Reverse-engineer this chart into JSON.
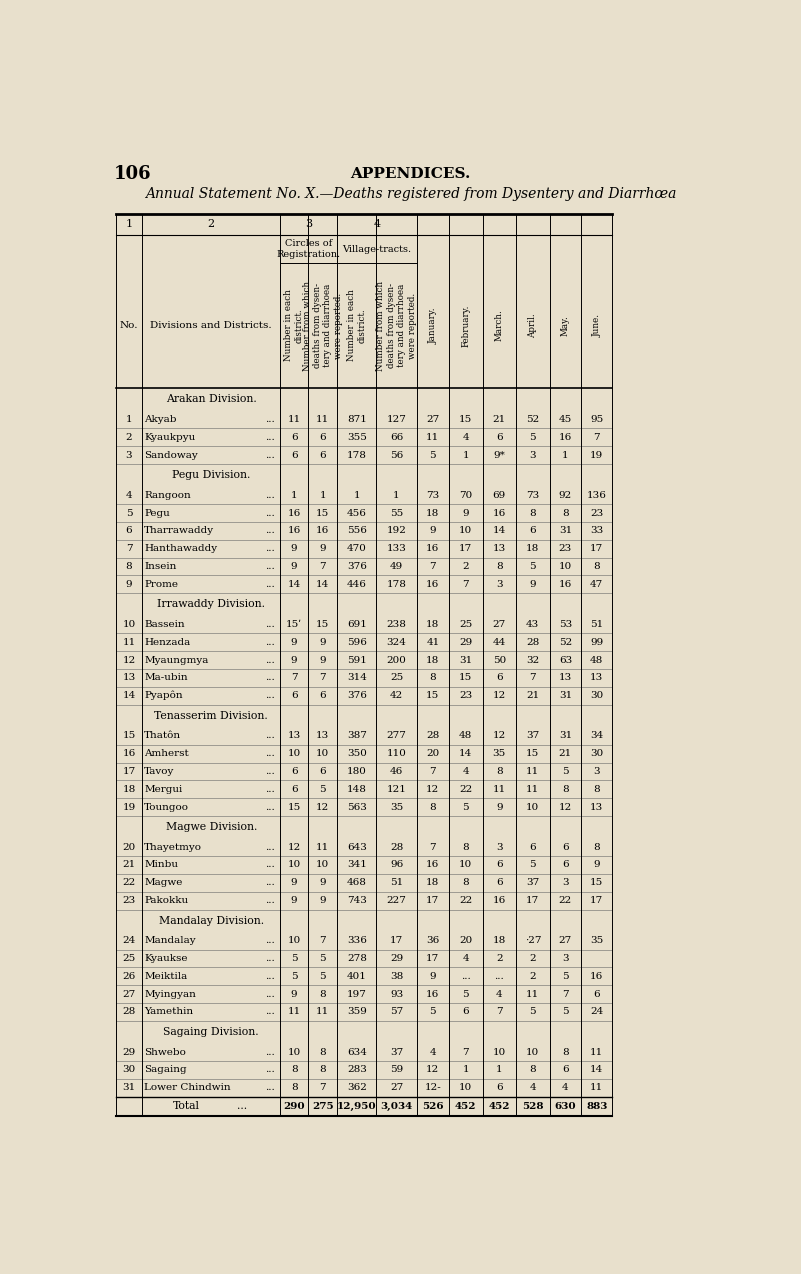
{
  "page_number": "106",
  "page_header": "APPENDICES.",
  "title": "Annual Statement No. X.—Deaths registered from Dysentery and Diarrhœa",
  "bg_color": "#e8e0cc",
  "divisions": [
    {
      "name": "Arakan Division.",
      "rows": [
        {
          "no": "1",
          "district": "Akyab",
          "c1": "11",
          "c2": "11",
          "c3": "871",
          "c4": "127",
          "jan": "27",
          "feb": "15",
          "mar": "21",
          "apr": "52",
          "may": "45",
          "jun": "95"
        },
        {
          "no": "2",
          "district": "Kyaukpyu",
          "c1": "6",
          "c2": "6",
          "c3": "355",
          "c4": "66",
          "jan": "11",
          "feb": "4",
          "mar": "6",
          "apr": "5",
          "may": "16",
          "jun": "7"
        },
        {
          "no": "3",
          "district": "Sandoway",
          "c1": "6",
          "c2": "6",
          "c3": "178",
          "c4": "56",
          "jan": "5",
          "feb": "1",
          "mar": "9*",
          "apr": "3",
          "may": "1",
          "jun": "19"
        }
      ]
    },
    {
      "name": "Pegu Division.",
      "rows": [
        {
          "no": "4",
          "district": "Rangoon",
          "c1": "1",
          "c2": "1",
          "c3": "1",
          "c4": "1",
          "jan": "73",
          "feb": "70",
          "mar": "69",
          "apr": "73",
          "may": "92",
          "jun": "136"
        },
        {
          "no": "5",
          "district": "Pegu",
          "c1": "16",
          "c2": "15",
          "c3": "456",
          "c4": "55",
          "jan": "18",
          "feb": "9",
          "mar": "16",
          "apr": "8",
          "may": "8",
          "jun": "23"
        },
        {
          "no": "6",
          "district": "Tharrawaddy",
          "c1": "16",
          "c2": "16",
          "c3": "556",
          "c4": "192",
          "jan": "9",
          "feb": "10",
          "mar": "14",
          "apr": "6",
          "may": "31",
          "jun": "33"
        },
        {
          "no": "7",
          "district": "Hanthawaddy",
          "c1": "9",
          "c2": "9",
          "c3": "470",
          "c4": "133",
          "jan": "16",
          "feb": "17",
          "mar": "13",
          "apr": "18",
          "may": "23",
          "jun": "17"
        },
        {
          "no": "8",
          "district": "Insein",
          "c1": "9",
          "c2": "7",
          "c3": "376",
          "c4": "49",
          "jan": "7",
          "feb": "2",
          "mar": "8",
          "apr": "5",
          "may": "10",
          "jun": "8"
        },
        {
          "no": "9",
          "district": "Prome",
          "c1": "14",
          "c2": "14",
          "c3": "446",
          "c4": "178",
          "jan": "16",
          "feb": "7",
          "mar": "3",
          "apr": "9",
          "may": "16",
          "jun": "47"
        }
      ]
    },
    {
      "name": "Irrawaddy Division.",
      "rows": [
        {
          "no": "10",
          "district": "Bassein",
          "c1": "15ʹ",
          "c2": "15",
          "c3": "691",
          "c4": "238",
          "jan": "18",
          "feb": "25",
          "mar": "27",
          "apr": "43",
          "may": "53",
          "jun": "51"
        },
        {
          "no": "11",
          "district": "Henzada",
          "c1": "9",
          "c2": "9",
          "c3": "596",
          "c4": "324",
          "jan": "41",
          "feb": "29",
          "mar": "44",
          "apr": "28",
          "may": "52",
          "jun": "99"
        },
        {
          "no": "12",
          "district": "Myaungmya",
          "c1": "9",
          "c2": "9",
          "c3": "591",
          "c4": "200",
          "jan": "18",
          "feb": "31",
          "mar": "50",
          "apr": "32",
          "may": "63",
          "jun": "48"
        },
        {
          "no": "13",
          "district": "Ma-ubin",
          "c1": "7",
          "c2": "7",
          "c3": "314",
          "c4": "25",
          "jan": "8",
          "feb": "15",
          "mar": "6",
          "apr": "7",
          "may": "13",
          "jun": "13"
        },
        {
          "no": "14",
          "district": "Pyapôn",
          "c1": "6",
          "c2": "6",
          "c3": "376",
          "c4": "42",
          "jan": "15",
          "feb": "23",
          "mar": "12",
          "apr": "21",
          "may": "31",
          "jun": "30"
        }
      ]
    },
    {
      "name": "Tenasserim Division.",
      "rows": [
        {
          "no": "15",
          "district": "Thatôn",
          "c1": "13",
          "c2": "13",
          "c3": "387",
          "c4": "277",
          "jan": "28",
          "feb": "48",
          "mar": "12",
          "apr": "37",
          "may": "31",
          "jun": "34"
        },
        {
          "no": "16",
          "district": "Amherst",
          "c1": "10",
          "c2": "10",
          "c3": "350",
          "c4": "110",
          "jan": "20",
          "feb": "14",
          "mar": "35",
          "apr": "15",
          "may": "21",
          "jun": "30"
        },
        {
          "no": "17",
          "district": "Tavoy",
          "c1": "6",
          "c2": "6",
          "c3": "180",
          "c4": "46",
          "jan": "7",
          "feb": "4",
          "mar": "8",
          "apr": "11",
          "may": "5",
          "jun": "3"
        },
        {
          "no": "18",
          "district": "Mergui",
          "c1": "6",
          "c2": "5",
          "c3": "148",
          "c4": "121",
          "jan": "12",
          "feb": "22",
          "mar": "11",
          "apr": "11",
          "may": "8",
          "jun": "8"
        },
        {
          "no": "19",
          "district": "Toungoo",
          "c1": "15",
          "c2": "12",
          "c3": "563",
          "c4": "35",
          "jan": "8",
          "feb": "5",
          "mar": "9",
          "apr": "10",
          "may": "12",
          "jun": "13"
        }
      ]
    },
    {
      "name": "Magwe Division.",
      "rows": [
        {
          "no": "20",
          "district": "Thayetmyo",
          "c1": "12",
          "c2": "11",
          "c3": "643",
          "c4": "28",
          "jan": "7",
          "feb": "8",
          "mar": "3",
          "apr": "6",
          "may": "6",
          "jun": "8"
        },
        {
          "no": "21",
          "district": "Minbu",
          "c1": "10",
          "c2": "10",
          "c3": "341",
          "c4": "96",
          "jan": "16",
          "feb": "10",
          "mar": "6",
          "apr": "5",
          "may": "6",
          "jun": "9"
        },
        {
          "no": "22",
          "district": "Magwe",
          "c1": "9",
          "c2": "9",
          "c3": "468",
          "c4": "51",
          "jan": "18",
          "feb": "8",
          "mar": "6",
          "apr": "37",
          "may": "3",
          "jun": "15"
        },
        {
          "no": "23",
          "district": "Pakokku",
          "c1": "9",
          "c2": "9",
          "c3": "743",
          "c4": "227",
          "jan": "17",
          "feb": "22",
          "mar": "16",
          "apr": "17",
          "may": "22",
          "jun": "17"
        }
      ]
    },
    {
      "name": "Mandalay Division.",
      "rows": [
        {
          "no": "24",
          "district": "Mandalay",
          "c1": "10",
          "c2": "7",
          "c3": "336",
          "c4": "17",
          "jan": "36",
          "feb": "20",
          "mar": "18",
          "apr": "·27",
          "may": "27",
          "jun": "35"
        },
        {
          "no": "25",
          "district": "Kyaukse",
          "c1": "5",
          "c2": "5",
          "c3": "278",
          "c4": "29",
          "jan": "17",
          "feb": "4",
          "mar": "2",
          "apr": "2",
          "may": "3",
          "jun": ""
        },
        {
          "no": "26",
          "district": "Meiktila",
          "c1": "5",
          "c2": "5",
          "c3": "401",
          "c4": "38",
          "jan": "9",
          "feb": "...",
          "mar": "...",
          "apr": "2",
          "may": "5",
          "jun": "16"
        },
        {
          "no": "27",
          "district": "Myingyan",
          "c1": "9",
          "c2": "8",
          "c3": "197",
          "c4": "93",
          "jan": "16",
          "feb": "5",
          "mar": "4",
          "apr": "11",
          "may": "7",
          "jun": "6"
        },
        {
          "no": "28",
          "district": "Yamethin",
          "c1": "11",
          "c2": "11",
          "c3": "359",
          "c4": "57",
          "jan": "5",
          "feb": "6",
          "mar": "7",
          "apr": "5",
          "may": "5",
          "jun": "24"
        }
      ]
    },
    {
      "name": "Sagaing Division.",
      "rows": [
        {
          "no": "29",
          "district": "Shwebo",
          "c1": "10",
          "c2": "8",
          "c3": "634",
          "c4": "37",
          "jan": "4",
          "feb": "7",
          "mar": "10",
          "apr": "10",
          "may": "8",
          "jun": "11"
        },
        {
          "no": "30",
          "district": "Sagaing",
          "c1": "8",
          "c2": "8",
          "c3": "283",
          "c4": "59",
          "jan": "12",
          "feb": "1",
          "mar": "1",
          "apr": "8",
          "may": "6",
          "jun": "14"
        },
        {
          "no": "31",
          "district": "Lower Chindwin",
          "c1": "8",
          "c2": "7",
          "c3": "362",
          "c4": "27",
          "jan": "12-",
          "feb": "10",
          "mar": "6",
          "apr": "4",
          "may": "4",
          "jun": "11"
        }
      ]
    }
  ],
  "total_row": {
    "c1": "290",
    "c2": "275",
    "c3": "12,950",
    "c4": "3,034",
    "jan": "526",
    "feb": "452",
    "mar": "452",
    "apr": "528",
    "may": "630",
    "jun": "883"
  }
}
